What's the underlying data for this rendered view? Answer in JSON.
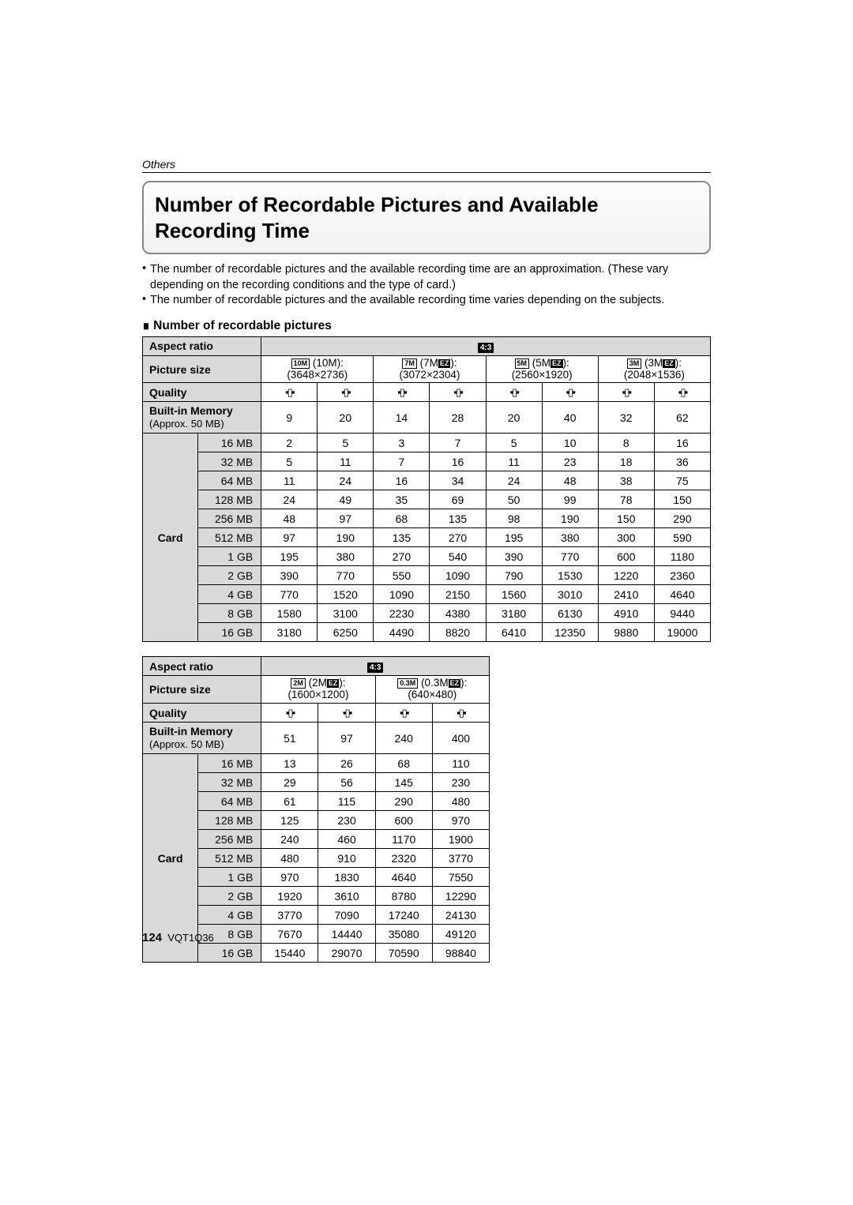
{
  "section_label": "Others",
  "title": "Number of Recordable Pictures and Available Recording Time",
  "bullets": [
    "The number of recordable pictures and the available recording time are an approximation. (These vary depending on the recording conditions and the type of card.)",
    "The number of recordable pictures and the available recording time varies depending on the subjects."
  ],
  "subhead": "Number of recordable pictures",
  "labels": {
    "aspect_ratio": "Aspect ratio",
    "picture_size": "Picture size",
    "quality": "Quality",
    "builtin": "Built-in Memory",
    "builtin_sub": "(Approx. 50 MB)",
    "card": "Card",
    "ratio43": "4:3"
  },
  "table1": {
    "picture_sizes": [
      {
        "icon": "10M",
        "name": "(10M):",
        "dims": "(3648×2736)"
      },
      {
        "icon": "7M",
        "name": "(7M",
        "ez": true,
        "suffix": "):",
        "dims": "(3072×2304)"
      },
      {
        "icon": "5M",
        "name": "(5M",
        "ez": true,
        "suffix": "):",
        "dims": "(2560×1920)"
      },
      {
        "icon": "3M",
        "name": "(3M",
        "ez": true,
        "suffix": "):",
        "dims": "(2048×1536)"
      }
    ],
    "builtin": [
      9,
      20,
      14,
      28,
      20,
      40,
      32,
      62
    ],
    "card_sizes": [
      "16 MB",
      "32 MB",
      "64 MB",
      "128 MB",
      "256 MB",
      "512 MB",
      "1 GB",
      "2 GB",
      "4 GB",
      "8 GB",
      "16 GB"
    ],
    "rows": [
      [
        2,
        5,
        3,
        7,
        5,
        10,
        8,
        16
      ],
      [
        5,
        11,
        7,
        16,
        11,
        23,
        18,
        36
      ],
      [
        11,
        24,
        16,
        34,
        24,
        48,
        38,
        75
      ],
      [
        24,
        49,
        35,
        69,
        50,
        99,
        78,
        150
      ],
      [
        48,
        97,
        68,
        135,
        98,
        190,
        150,
        290
      ],
      [
        97,
        190,
        135,
        270,
        195,
        380,
        300,
        590
      ],
      [
        195,
        380,
        270,
        540,
        390,
        770,
        600,
        1180
      ],
      [
        390,
        770,
        550,
        1090,
        790,
        1530,
        1220,
        2360
      ],
      [
        770,
        1520,
        1090,
        2150,
        1560,
        3010,
        2410,
        4640
      ],
      [
        1580,
        3100,
        2230,
        4380,
        3180,
        6130,
        4910,
        9440
      ],
      [
        3180,
        6250,
        4490,
        8820,
        6410,
        12350,
        9880,
        19000
      ]
    ]
  },
  "table2": {
    "picture_sizes": [
      {
        "icon": "2M",
        "name": "(2M",
        "ez": true,
        "suffix": "):",
        "dims": "(1600×1200)"
      },
      {
        "icon": "0.3M",
        "name": "(0.3M",
        "ez": true,
        "suffix": "):",
        "dims": "(640×480)"
      }
    ],
    "builtin": [
      51,
      97,
      240,
      400
    ],
    "card_sizes": [
      "16 MB",
      "32 MB",
      "64 MB",
      "128 MB",
      "256 MB",
      "512 MB",
      "1 GB",
      "2 GB",
      "4 GB",
      "8 GB",
      "16 GB"
    ],
    "rows": [
      [
        13,
        26,
        68,
        110
      ],
      [
        29,
        56,
        145,
        230
      ],
      [
        61,
        115,
        290,
        480
      ],
      [
        125,
        230,
        600,
        970
      ],
      [
        240,
        460,
        1170,
        1900
      ],
      [
        480,
        910,
        2320,
        3770
      ],
      [
        970,
        1830,
        4640,
        7550
      ],
      [
        1920,
        3610,
        8780,
        12290
      ],
      [
        3770,
        7090,
        17240,
        24130
      ],
      [
        7670,
        14440,
        35080,
        49120
      ],
      [
        15440,
        29070,
        70590,
        98840
      ]
    ]
  },
  "footer": {
    "page": "124",
    "code": "VQT1Q36"
  },
  "style": {
    "header_bg": "#d9d9d9",
    "border_color": "#000000",
    "body_font_size": 15,
    "table_font_size": 14
  }
}
